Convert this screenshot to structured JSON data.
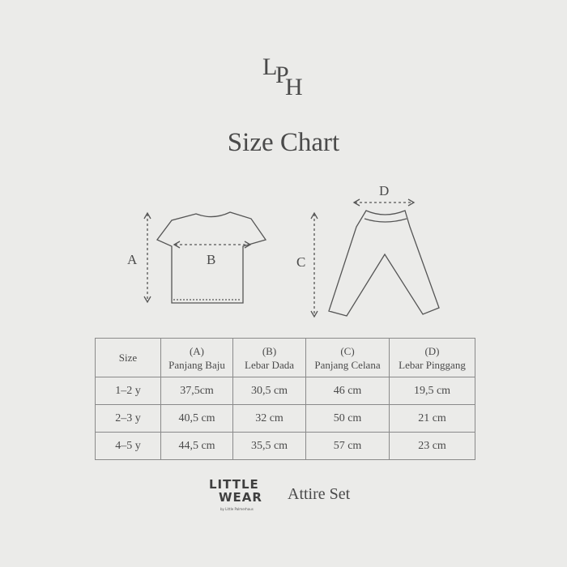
{
  "logo_text": "LPH",
  "title": "Size Chart",
  "diagram_labels": {
    "a": "A",
    "b": "B",
    "c": "C",
    "d": "D"
  },
  "table": {
    "headers": [
      {
        "letter": "",
        "name": "Size"
      },
      {
        "letter": "(A)",
        "name": "Panjang Baju"
      },
      {
        "letter": "(B)",
        "name": "Lebar Dada"
      },
      {
        "letter": "(C)",
        "name": "Panjang Celana"
      },
      {
        "letter": "(D)",
        "name": "Lebar Pinggang"
      }
    ],
    "rows": [
      [
        "1–2 y",
        "37,5cm",
        "30,5 cm",
        "46 cm",
        "19,5 cm"
      ],
      [
        "2–3 y",
        "40,5 cm",
        "32 cm",
        "50 cm",
        "21 cm"
      ],
      [
        "4–5 y",
        "44,5 cm",
        "35,5 cm",
        "57 cm",
        "23 cm"
      ]
    ]
  },
  "brand": {
    "line1": "LITTLE",
    "line2": "WEAR",
    "tagline": "by Little Palmerhaus"
  },
  "product": "Attire Set"
}
